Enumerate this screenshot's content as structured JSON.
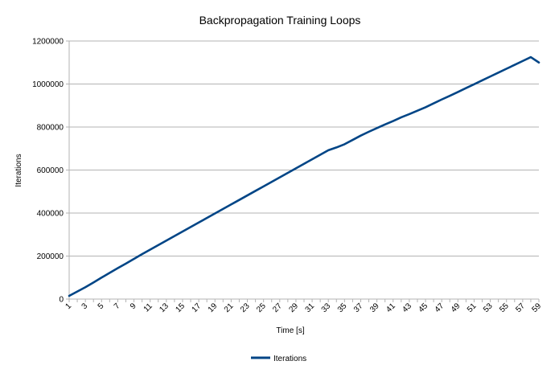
{
  "chart_data": {
    "type": "line",
    "title": "Backpropagation Training Loops",
    "xlabel": "Time [s]",
    "ylabel": "Iterations",
    "ylim": [
      0,
      1200000
    ],
    "yticks": [
      0,
      200000,
      400000,
      600000,
      800000,
      1000000,
      1200000
    ],
    "ytick_labels": [
      "0",
      "200000",
      "400000",
      "600000",
      "800000",
      "1000000",
      "1200000"
    ],
    "xlim": [
      1,
      59
    ],
    "xtick_labels": [
      "1",
      "3",
      "5",
      "7",
      "9",
      "11",
      "13",
      "15",
      "17",
      "19",
      "21",
      "23",
      "25",
      "27",
      "29",
      "31",
      "33",
      "35",
      "37",
      "39",
      "41",
      "43",
      "45",
      "47",
      "49",
      "51",
      "53",
      "55",
      "57",
      "59"
    ],
    "grid": true,
    "legend": "bottom",
    "color": "#004586",
    "series": [
      {
        "name": "Iterations",
        "x": [
          1,
          2,
          3,
          4,
          5,
          6,
          7,
          8,
          9,
          10,
          11,
          12,
          13,
          14,
          15,
          16,
          17,
          18,
          19,
          20,
          21,
          22,
          23,
          24,
          25,
          26,
          27,
          28,
          29,
          30,
          31,
          32,
          33,
          34,
          35,
          36,
          37,
          38,
          39,
          40,
          41,
          42,
          43,
          44,
          45,
          46,
          47,
          48,
          49,
          50,
          51,
          52,
          53,
          54,
          55,
          56,
          57,
          58,
          59
        ],
        "values": [
          15000,
          35000,
          55000,
          77000,
          100000,
          122000,
          144000,
          165000,
          187000,
          209000,
          230000,
          251000,
          272000,
          293000,
          314000,
          335000,
          356000,
          377000,
          398000,
          419000,
          440000,
          461000,
          482000,
          503000,
          524000,
          545000,
          566000,
          587000,
          608000,
          629000,
          650000,
          671000,
          692000,
          705000,
          720000,
          740000,
          760000,
          778000,
          795000,
          812000,
          828000,
          845000,
          860000,
          876000,
          892000,
          910000,
          928000,
          945000,
          963000,
          981000,
          999000,
          1017000,
          1035000,
          1053000,
          1071000,
          1089000,
          1107000,
          1125000,
          1100000
        ]
      }
    ]
  }
}
